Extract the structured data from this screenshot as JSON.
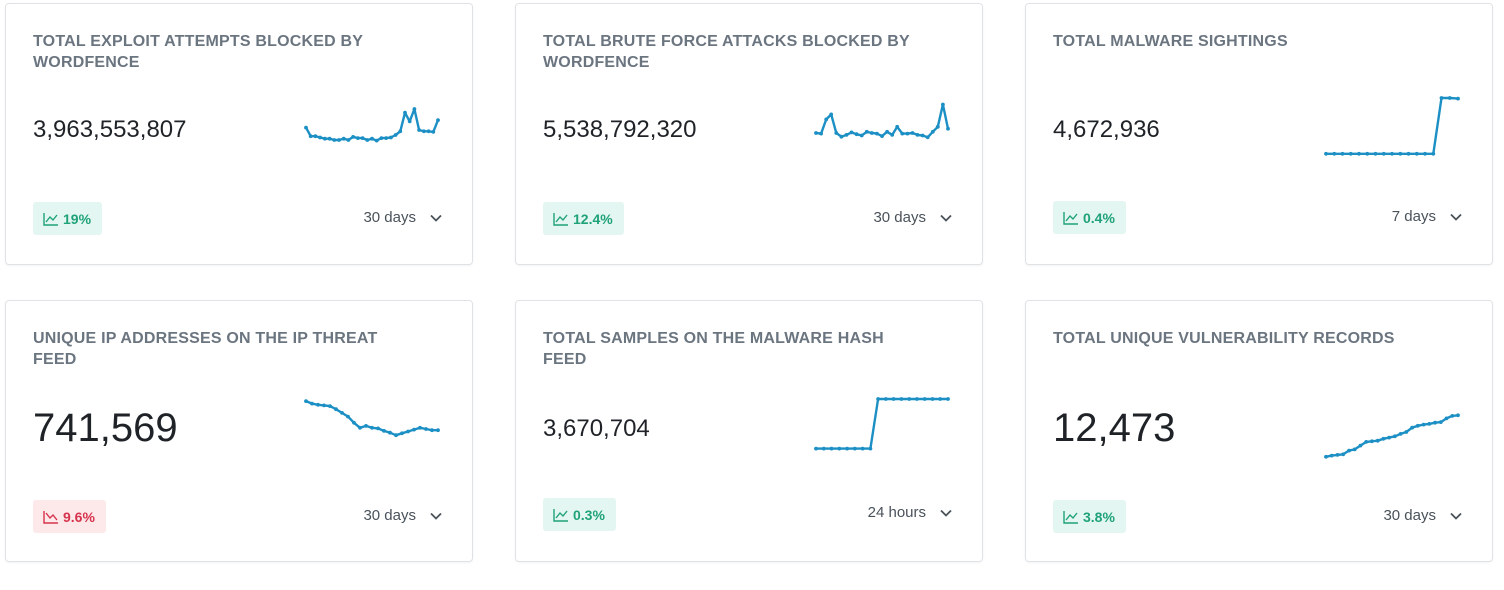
{
  "colors": {
    "spark_line": "#1c8fc4",
    "badge_up_bg": "#e4f6f1",
    "badge_up_text": "#1fa279",
    "badge_down_bg": "#fde8ea",
    "badge_down_text": "#d6334c",
    "title_text": "#6b7580"
  },
  "cards": [
    {
      "title": "TOTAL EXPLOIT ATTEMPTS BLOCKED BY WORDFENCE",
      "value": "3,963,553,807",
      "change": "19%",
      "trend": "up",
      "trend_icon": "trend-up-icon",
      "period": "30 days",
      "spark": [
        62,
        48,
        48,
        46,
        44,
        44,
        42,
        42,
        44,
        42,
        47,
        45,
        45,
        42,
        44,
        41,
        45,
        45,
        46,
        50,
        56,
        86,
        72,
        92,
        58,
        56,
        56,
        55,
        74
      ]
    },
    {
      "title": "TOTAL BRUTE FORCE ATTACKS BLOCKED BY WORDFENCE",
      "value": "5,538,792,320",
      "change": "12.4%",
      "trend": "up",
      "trend_icon": "trend-up-icon",
      "period": "30 days",
      "spark": [
        50,
        49,
        72,
        80,
        50,
        44,
        47,
        51,
        48,
        46,
        52,
        50,
        49,
        45,
        52,
        47,
        60,
        49,
        49,
        50,
        47,
        46,
        43,
        52,
        60,
        96,
        57
      ]
    },
    {
      "title": "TOTAL MALWARE SIGHTINGS",
      "value": "4,672,936",
      "change": "0.4%",
      "trend": "up",
      "trend_icon": "trend-up-icon",
      "period": "7 days",
      "spark": [
        10,
        10,
        10,
        10,
        10,
        10,
        10,
        10,
        10,
        10,
        10,
        10,
        10,
        10,
        100,
        100,
        99
      ]
    },
    {
      "title": "UNIQUE IP ADDRESSES ON THE IP THREAT FEED",
      "value": "741,569",
      "change": "9.6%",
      "trend": "down",
      "trend_icon": "trend-down-icon",
      "period": "30 days",
      "spark": [
        95,
        91,
        89,
        88,
        87,
        82,
        76,
        70,
        60,
        52,
        55,
        52,
        51,
        47,
        44,
        40,
        43,
        46,
        49,
        52,
        50,
        48,
        48
      ]
    },
    {
      "title": "TOTAL SAMPLES ON THE MALWARE HASH FEED",
      "value": "3,670,704",
      "change": "0.3%",
      "trend": "up",
      "trend_icon": "trend-up-icon",
      "period": "24 hours",
      "spark": [
        20,
        20,
        20,
        20,
        20,
        20,
        20,
        20,
        100,
        100,
        100,
        100,
        100,
        100,
        100,
        100,
        100,
        100
      ]
    },
    {
      "title": "TOTAL UNIQUE VULNERABILITY RECORDS",
      "value": "12,473",
      "change": "3.8%",
      "trend": "up",
      "trend_icon": "trend-up-icon",
      "period": "30 days",
      "spark": [
        10,
        12,
        13,
        14,
        20,
        22,
        28,
        34,
        35,
        36,
        39,
        41,
        43,
        47,
        50,
        57,
        60,
        62,
        63,
        65,
        66,
        72,
        76,
        77
      ]
    }
  ]
}
